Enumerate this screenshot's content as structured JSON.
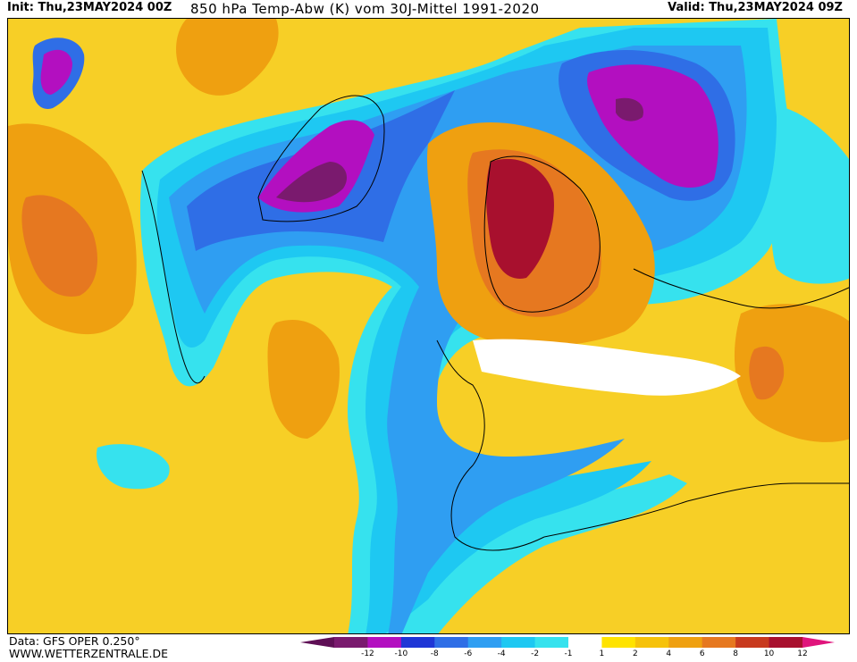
{
  "header": {
    "init": "Init: Thu,23MAY2024 00Z",
    "title": "850 hPa Temp-Abw (K) vom 30J-Mittel 1991-2020",
    "valid": "Valid: Thu,23MAY2024 09Z"
  },
  "footer": {
    "data_source": "Data: GFS OPER 0.250°",
    "website": "WWW.WETTERZENTRALE.DE"
  },
  "legend": {
    "ticks": [
      "-12",
      "-10",
      "-8",
      "-6",
      "-4",
      "-2",
      "-1",
      "1",
      "2",
      "4",
      "6",
      "8",
      "10",
      "12"
    ],
    "colors": [
      "#7a1a6e",
      "#b30fc0",
      "#1f36d6",
      "#2f6ee6",
      "#2f9ef2",
      "#1ec8f2",
      "#36e2ee",
      "#ffffff",
      "#ffe300",
      "#f6c20a",
      "#efa010",
      "#e67820",
      "#c83a1e",
      "#a8102e"
    ],
    "below_color": "#5e0f55",
    "above_color": "#e0147c"
  },
  "map": {
    "description_colors": {
      "ocean_warm": "#f7cf26",
      "cold_blue": "#2f6ee6",
      "very_cold": "#b30fc0",
      "warm_orange": "#efa010",
      "hot_red": "#a8102e"
    }
  }
}
